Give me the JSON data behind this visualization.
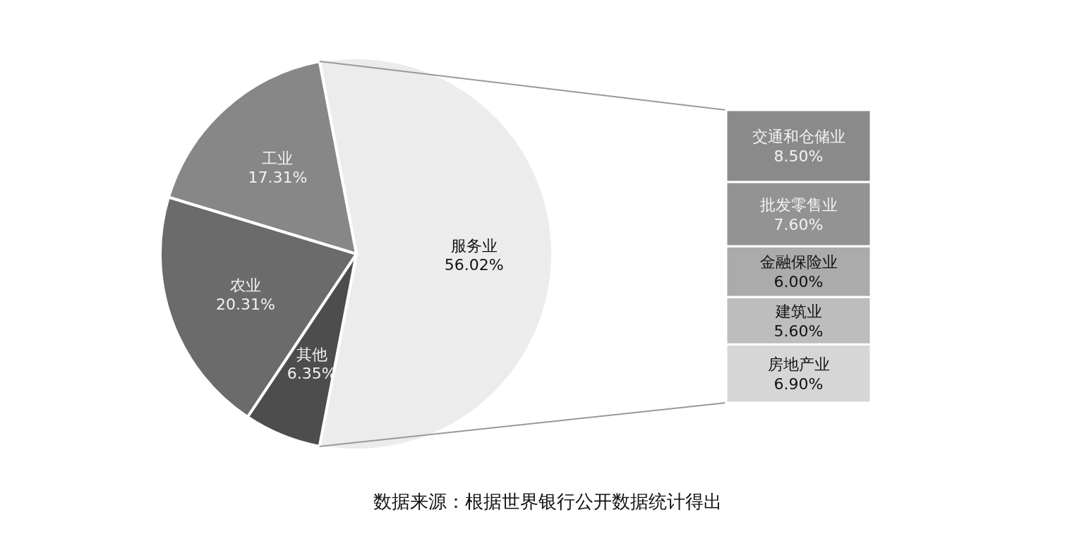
{
  "chart_data": [
    {
      "type": "pie",
      "categories": [
        "服务业",
        "其他",
        "农业",
        "工业"
      ],
      "values": [
        56.02,
        6.35,
        20.31,
        17.31
      ],
      "value_labels": [
        "56.02%",
        "6.35%",
        "20.31%",
        "17.31%"
      ],
      "colors": [
        "#ececec",
        "#4d4d4d",
        "#6b6b6b",
        "#878787"
      ],
      "annotations": [
        "数据来源：根据世界银行公开数据统计得出"
      ]
    },
    {
      "type": "bar",
      "stacked": true,
      "categories": [
        null
      ],
      "series": [
        {
          "name": "房地产业",
          "color": "#d6d6d6",
          "values": [
            6.9
          ],
          "value_labels": [
            "6.90%"
          ]
        },
        {
          "name": "建筑业",
          "color": "#bdbdbd",
          "values": [
            5.6
          ],
          "value_labels": [
            "5.60%"
          ]
        },
        {
          "name": "金融保险业",
          "color": "#ababab",
          "values": [
            6.0
          ],
          "value_labels": [
            "6.00%"
          ]
        },
        {
          "name": "批发零售业",
          "color": "#939393",
          "values": [
            7.6
          ],
          "value_labels": [
            "7.60%"
          ]
        },
        {
          "name": "交通和仓储业",
          "color": "#8a8a8a",
          "values": [
            8.5
          ],
          "value_labels": [
            "8.50%"
          ]
        }
      ]
    }
  ]
}
